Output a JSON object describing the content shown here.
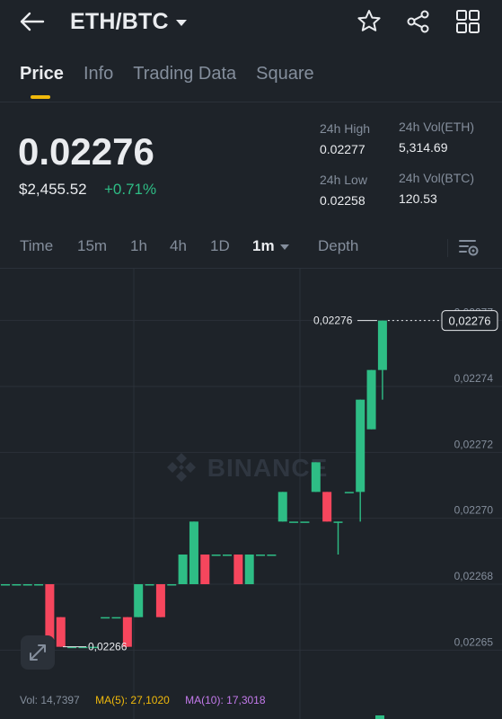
{
  "header": {
    "pair": "ETH/BTC"
  },
  "tabs": [
    "Price",
    "Info",
    "Trading Data",
    "Square"
  ],
  "price": {
    "last": "0.02276",
    "fiat": "$2,455.52",
    "change": "+0.71%"
  },
  "stats": {
    "high_label": "24h High",
    "high_value": "0.02277",
    "low_label": "24h Low",
    "low_value": "0.02258",
    "vol_eth_label": "24h Vol(ETH)",
    "vol_eth_value": "5,314.69",
    "vol_btc_label": "24h Vol(BTC)",
    "vol_btc_value": "120.53"
  },
  "intervals": {
    "time": "Time",
    "m15": "15m",
    "h1": "1h",
    "h4": "4h",
    "d1": "1D",
    "m1": "1m",
    "depth": "Depth"
  },
  "watermark": "BINANCE",
  "colors": {
    "up": "#2ebd85",
    "down": "#f6465d",
    "accent": "#f0b90b",
    "ma10": "#c47aec"
  },
  "chart_data": {
    "type": "candlestick",
    "y_ticks": [
      "0,02277",
      "0,02274",
      "0,02272",
      "0,02270",
      "0,02268",
      "0,02265"
    ],
    "ylim": [
      0.02265,
      0.02277
    ],
    "high_label": "0,02276",
    "low_label": "0,02266",
    "current_price_tag": "0,02276",
    "grid": true,
    "candles": [
      {
        "o": 0.02268,
        "h": 0.02268,
        "l": 0.02268,
        "c": 0.02268
      },
      {
        "o": 0.02268,
        "h": 0.02268,
        "l": 0.02268,
        "c": 0.02268
      },
      {
        "o": 0.02268,
        "h": 0.02268,
        "l": 0.02268,
        "c": 0.02268
      },
      {
        "o": 0.02268,
        "h": 0.02268,
        "l": 0.02268,
        "c": 0.02268
      },
      {
        "o": 0.02268,
        "h": 0.02268,
        "l": 0.022661,
        "c": 0.022661
      },
      {
        "o": 0.02267,
        "h": 0.02267,
        "l": 0.022661,
        "c": 0.022661
      },
      {
        "o": 0.022661,
        "h": 0.022661,
        "l": 0.022661,
        "c": 0.022661
      },
      {
        "o": 0.022661,
        "h": 0.022661,
        "l": 0.022661,
        "c": 0.022661
      },
      {
        "o": 0.022661,
        "h": 0.022661,
        "l": 0.022661,
        "c": 0.022661
      },
      {
        "o": 0.02267,
        "h": 0.02267,
        "l": 0.02267,
        "c": 0.02267
      },
      {
        "o": 0.02267,
        "h": 0.02267,
        "l": 0.02267,
        "c": 0.02267
      },
      {
        "o": 0.02267,
        "h": 0.02267,
        "l": 0.022661,
        "c": 0.022661
      },
      {
        "o": 0.02267,
        "h": 0.02268,
        "l": 0.02267,
        "c": 0.02268
      },
      {
        "o": 0.02268,
        "h": 0.02268,
        "l": 0.02268,
        "c": 0.02268
      },
      {
        "o": 0.02268,
        "h": 0.02268,
        "l": 0.02267,
        "c": 0.02267
      },
      {
        "o": 0.02268,
        "h": 0.02268,
        "l": 0.02268,
        "c": 0.02268
      },
      {
        "o": 0.02268,
        "h": 0.022689,
        "l": 0.02268,
        "c": 0.022689
      },
      {
        "o": 0.02268,
        "h": 0.022699,
        "l": 0.02268,
        "c": 0.022699
      },
      {
        "o": 0.022689,
        "h": 0.022689,
        "l": 0.02268,
        "c": 0.02268
      },
      {
        "o": 0.022689,
        "h": 0.022689,
        "l": 0.022689,
        "c": 0.022689
      },
      {
        "o": 0.022689,
        "h": 0.022689,
        "l": 0.022689,
        "c": 0.022689
      },
      {
        "o": 0.022689,
        "h": 0.022689,
        "l": 0.02268,
        "c": 0.02268
      },
      {
        "o": 0.02268,
        "h": 0.022689,
        "l": 0.02268,
        "c": 0.022689
      },
      {
        "o": 0.022689,
        "h": 0.022689,
        "l": 0.022689,
        "c": 0.022689
      },
      {
        "o": 0.022689,
        "h": 0.022689,
        "l": 0.022689,
        "c": 0.022689
      },
      {
        "o": 0.022699,
        "h": 0.022708,
        "l": 0.022699,
        "c": 0.022708
      },
      {
        "o": 0.022699,
        "h": 0.022699,
        "l": 0.022699,
        "c": 0.022699
      },
      {
        "o": 0.022699,
        "h": 0.022699,
        "l": 0.022699,
        "c": 0.022699
      },
      {
        "o": 0.022708,
        "h": 0.022717,
        "l": 0.022708,
        "c": 0.022717
      },
      {
        "o": 0.022708,
        "h": 0.022708,
        "l": 0.022699,
        "c": 0.022699
      },
      {
        "o": 0.022699,
        "h": 0.022699,
        "l": 0.022689,
        "c": 0.022699
      },
      {
        "o": 0.022708,
        "h": 0.022708,
        "l": 0.022708,
        "c": 0.022708
      },
      {
        "o": 0.022708,
        "h": 0.022736,
        "l": 0.022699,
        "c": 0.022736
      },
      {
        "o": 0.022727,
        "h": 0.022745,
        "l": 0.022727,
        "c": 0.022745
      },
      {
        "o": 0.022745,
        "h": 0.02276,
        "l": 0.022736,
        "c": 0.02276
      }
    ]
  },
  "volume": {
    "vol": "Vol: 14,7397",
    "ma5": "MA(5): 27,1020",
    "ma10": "MA(10): 17,3018"
  }
}
